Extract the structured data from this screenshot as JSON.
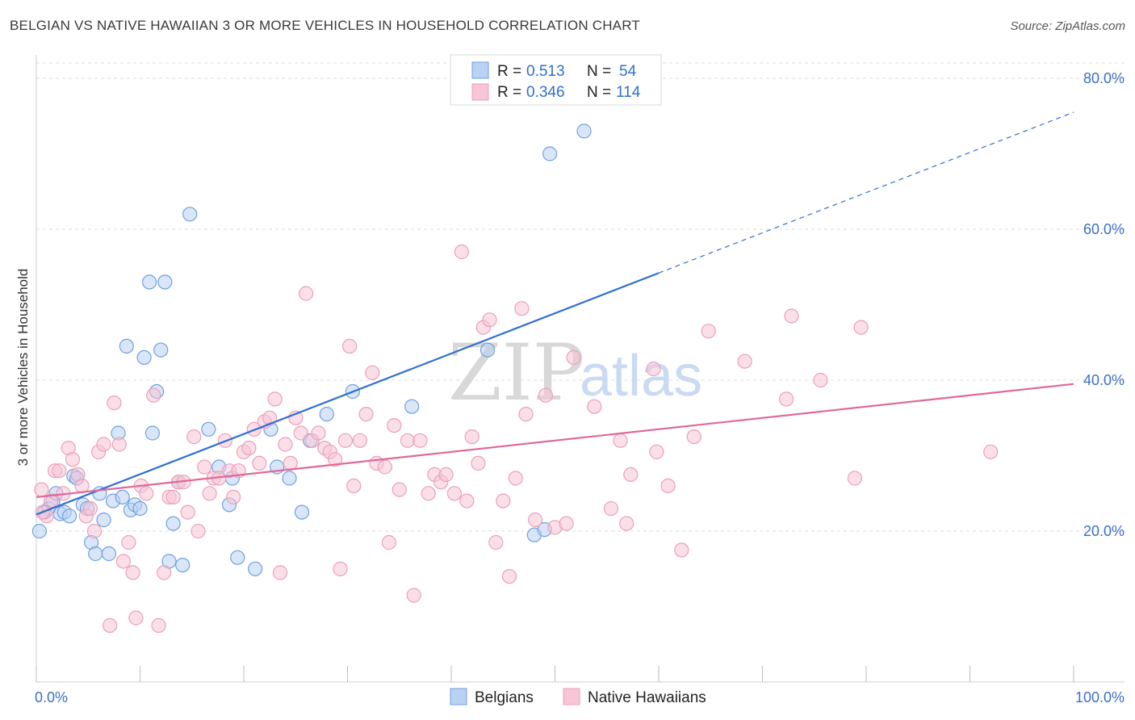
{
  "title": "BELGIAN VS NATIVE HAWAIIAN 3 OR MORE VEHICLES IN HOUSEHOLD CORRELATION CHART",
  "source": "Source: ZipAtlas.com",
  "watermark": {
    "zip": "ZIP",
    "atlas": "atlas"
  },
  "legend": {
    "rows": [
      {
        "r_label": "R =",
        "r_value": "0.513",
        "n_label": "N =",
        "n_value": "54"
      },
      {
        "r_label": "R =",
        "r_value": "0.346",
        "n_label": "N =",
        "n_value": "114"
      }
    ]
  },
  "bottom_legend": [
    "Belgians",
    "Native Hawaiians"
  ],
  "chart_data": {
    "type": "scatter",
    "title": "BELGIAN VS NATIVE HAWAIIAN 3 OR MORE VEHICLES IN HOUSEHOLD CORRELATION CHART",
    "xlabel": "",
    "ylabel": "3 or more Vehicles in Household",
    "xlim": [
      0,
      100
    ],
    "ylim": [
      0,
      82
    ],
    "x_tick_labels": [
      "0.0%",
      "100.0%"
    ],
    "y_ticks": [
      20,
      40,
      60,
      80
    ],
    "y_tick_labels": [
      "20.0%",
      "40.0%",
      "60.0%",
      "80.0%"
    ],
    "grid": true,
    "legend_position": "top-center",
    "series": [
      {
        "name": "Belgians",
        "color": "#6fa0e0",
        "fill": "#b9d1f3",
        "trend": {
          "x0": 0,
          "y0": 22.2,
          "x1": 60,
          "y1": 54.2,
          "dashed_to_x": 100,
          "dashed_to_y": 75.5,
          "color": "#2f6fd1"
        },
        "points": [
          [
            0.3,
            20.0
          ],
          [
            0.8,
            22.5
          ],
          [
            1.2,
            23.0
          ],
          [
            1.6,
            24.0
          ],
          [
            1.9,
            25.0
          ],
          [
            2.3,
            22.3
          ],
          [
            2.7,
            22.5
          ],
          [
            3.2,
            22.0
          ],
          [
            3.6,
            27.3
          ],
          [
            3.9,
            27.0
          ],
          [
            4.5,
            23.5
          ],
          [
            4.9,
            23.0
          ],
          [
            5.3,
            18.5
          ],
          [
            5.7,
            17.0
          ],
          [
            6.1,
            25.0
          ],
          [
            6.5,
            21.5
          ],
          [
            7.0,
            17.0
          ],
          [
            7.4,
            24.0
          ],
          [
            7.9,
            33.0
          ],
          [
            8.3,
            24.5
          ],
          [
            8.7,
            44.5
          ],
          [
            9.1,
            22.8
          ],
          [
            9.5,
            23.5
          ],
          [
            10.0,
            23.0
          ],
          [
            10.4,
            43.0
          ],
          [
            10.9,
            53.0
          ],
          [
            11.2,
            33.0
          ],
          [
            11.6,
            38.5
          ],
          [
            12.0,
            44.0
          ],
          [
            12.4,
            53.0
          ],
          [
            12.8,
            16.0
          ],
          [
            13.2,
            21.0
          ],
          [
            13.7,
            26.5
          ],
          [
            14.1,
            15.5
          ],
          [
            14.8,
            62.0
          ],
          [
            16.6,
            33.5
          ],
          [
            17.6,
            28.5
          ],
          [
            18.6,
            23.5
          ],
          [
            18.9,
            27.0
          ],
          [
            19.4,
            16.5
          ],
          [
            21.1,
            15.0
          ],
          [
            22.6,
            33.5
          ],
          [
            23.2,
            28.5
          ],
          [
            24.4,
            27.0
          ],
          [
            25.6,
            22.5
          ],
          [
            26.4,
            32.0
          ],
          [
            28.0,
            35.5
          ],
          [
            30.5,
            38.5
          ],
          [
            36.2,
            36.5
          ],
          [
            43.5,
            44.0
          ],
          [
            48.0,
            19.5
          ],
          [
            49.0,
            20.2
          ],
          [
            49.5,
            70.0
          ],
          [
            52.8,
            73.0
          ]
        ]
      },
      {
        "name": "Native Hawaiians",
        "color": "#eca0b8",
        "fill": "#f7c5d5",
        "trend": {
          "x0": 0,
          "y0": 24.5,
          "x1": 100,
          "y1": 39.5,
          "color": "#e0689a"
        },
        "points": [
          [
            0.5,
            25.5
          ],
          [
            1.0,
            22.0
          ],
          [
            1.4,
            24.0
          ],
          [
            1.8,
            28.0
          ],
          [
            2.2,
            28.0
          ],
          [
            2.6,
            25.0
          ],
          [
            3.1,
            31.0
          ],
          [
            3.5,
            29.5
          ],
          [
            4.0,
            27.5
          ],
          [
            4.4,
            26.0
          ],
          [
            4.8,
            22.0
          ],
          [
            5.2,
            23.0
          ],
          [
            5.6,
            20.0
          ],
          [
            6.0,
            30.5
          ],
          [
            6.5,
            31.5
          ],
          [
            7.1,
            7.5
          ],
          [
            7.5,
            37.0
          ],
          [
            8.0,
            31.5
          ],
          [
            8.4,
            16.0
          ],
          [
            8.9,
            18.5
          ],
          [
            9.3,
            14.5
          ],
          [
            9.6,
            8.5
          ],
          [
            10.1,
            26.0
          ],
          [
            10.6,
            25.0
          ],
          [
            11.3,
            38.0
          ],
          [
            11.8,
            7.5
          ],
          [
            12.3,
            14.5
          ],
          [
            12.8,
            24.5
          ],
          [
            13.2,
            24.5
          ],
          [
            13.7,
            26.5
          ],
          [
            14.2,
            26.5
          ],
          [
            14.6,
            22.5
          ],
          [
            15.2,
            32.5
          ],
          [
            15.6,
            20.0
          ],
          [
            16.2,
            28.5
          ],
          [
            16.7,
            25.0
          ],
          [
            17.1,
            27.0
          ],
          [
            17.6,
            27.0
          ],
          [
            18.2,
            32.0
          ],
          [
            18.6,
            28.0
          ],
          [
            19.0,
            24.5
          ],
          [
            19.5,
            28.0
          ],
          [
            20.0,
            30.5
          ],
          [
            20.5,
            31.0
          ],
          [
            21.0,
            33.5
          ],
          [
            21.5,
            29.0
          ],
          [
            22.0,
            34.5
          ],
          [
            22.5,
            35.0
          ],
          [
            23.0,
            37.5
          ],
          [
            23.5,
            14.5
          ],
          [
            24.0,
            31.5
          ],
          [
            24.5,
            29.0
          ],
          [
            25.0,
            35.0
          ],
          [
            25.5,
            33.0
          ],
          [
            26.0,
            51.5
          ],
          [
            26.6,
            32.0
          ],
          [
            27.2,
            33.0
          ],
          [
            27.8,
            31.0
          ],
          [
            28.3,
            30.5
          ],
          [
            28.8,
            29.5
          ],
          [
            29.3,
            15.0
          ],
          [
            29.8,
            32.0
          ],
          [
            30.2,
            44.5
          ],
          [
            30.6,
            26.0
          ],
          [
            31.2,
            32.0
          ],
          [
            31.8,
            35.5
          ],
          [
            32.4,
            41.0
          ],
          [
            32.8,
            29.0
          ],
          [
            33.6,
            28.5
          ],
          [
            34.0,
            18.5
          ],
          [
            34.5,
            34.0
          ],
          [
            35.0,
            25.5
          ],
          [
            35.8,
            32.0
          ],
          [
            36.4,
            11.5
          ],
          [
            37.0,
            32.0
          ],
          [
            37.8,
            25.0
          ],
          [
            38.4,
            27.5
          ],
          [
            39.0,
            26.5
          ],
          [
            39.5,
            27.5
          ],
          [
            40.3,
            25.0
          ],
          [
            41.0,
            57.0
          ],
          [
            41.5,
            24.0
          ],
          [
            42.0,
            32.5
          ],
          [
            42.6,
            29.0
          ],
          [
            43.1,
            47.0
          ],
          [
            43.7,
            48.0
          ],
          [
            44.3,
            18.5
          ],
          [
            45.0,
            24.0
          ],
          [
            45.6,
            14.0
          ],
          [
            46.2,
            27.0
          ],
          [
            46.8,
            49.5
          ],
          [
            47.2,
            35.5
          ],
          [
            48.1,
            21.5
          ],
          [
            49.1,
            38.0
          ],
          [
            50.0,
            20.5
          ],
          [
            51.1,
            21.0
          ],
          [
            51.8,
            43.0
          ],
          [
            53.8,
            36.5
          ],
          [
            55.4,
            23.0
          ],
          [
            56.3,
            32.0
          ],
          [
            56.9,
            21.0
          ],
          [
            57.3,
            27.5
          ],
          [
            59.5,
            41.5
          ],
          [
            59.8,
            30.5
          ],
          [
            60.9,
            26.0
          ],
          [
            62.2,
            17.5
          ],
          [
            63.4,
            32.5
          ],
          [
            64.8,
            46.5
          ],
          [
            68.3,
            42.5
          ],
          [
            72.3,
            37.5
          ],
          [
            72.8,
            48.5
          ],
          [
            75.6,
            40.0
          ],
          [
            78.9,
            27.0
          ],
          [
            79.5,
            47.0
          ],
          [
            92.0,
            30.5
          ],
          [
            0.6,
            22.5
          ]
        ]
      }
    ]
  }
}
